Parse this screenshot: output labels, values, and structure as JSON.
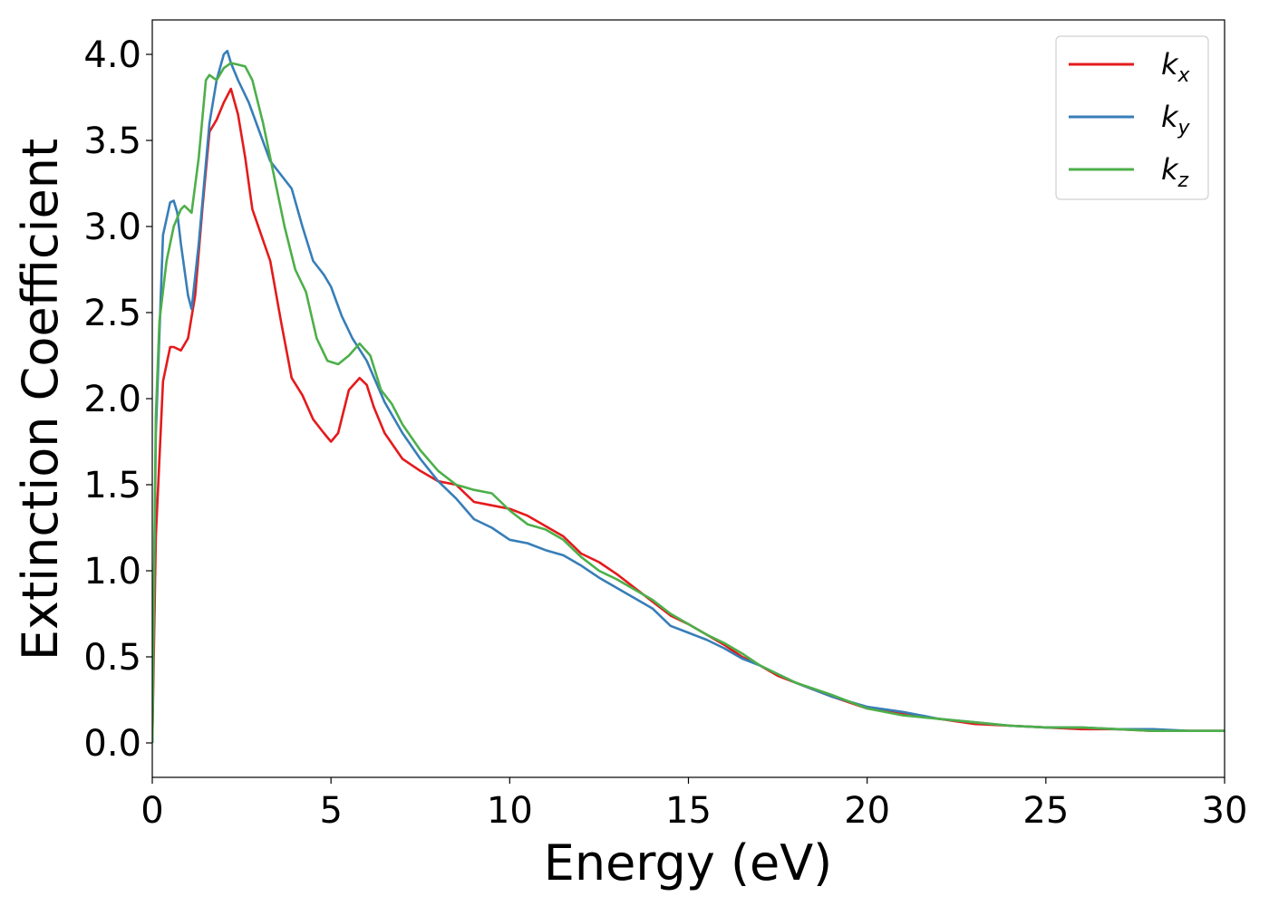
{
  "chart_data": {
    "type": "line",
    "title": "",
    "xlabel": "Energy (eV)",
    "ylabel": "Extinction Coefficient",
    "xlim": [
      0,
      30
    ],
    "ylim": [
      -0.2,
      4.2
    ],
    "xticks": [
      0,
      5,
      10,
      15,
      20,
      25,
      30
    ],
    "xtick_labels": [
      "0",
      "5",
      "10",
      "15",
      "20",
      "25",
      "30"
    ],
    "yticks": [
      0.0,
      0.5,
      1.0,
      1.5,
      2.0,
      2.5,
      3.0,
      3.5,
      4.0
    ],
    "ytick_labels": [
      "0.0",
      "0.5",
      "1.0",
      "1.5",
      "2.0",
      "2.5",
      "3.0",
      "3.5",
      "4.0"
    ],
    "grid": false,
    "legend_position": "top-right",
    "series": [
      {
        "name": "k_x",
        "legend_base": "k",
        "legend_sub": "x",
        "color": "#e41a1c",
        "x": [
          0,
          0.1,
          0.3,
          0.5,
          0.6,
          0.8,
          1.0,
          1.2,
          1.4,
          1.6,
          1.8,
          2.0,
          2.2,
          2.4,
          2.6,
          2.8,
          3.0,
          3.3,
          3.6,
          3.9,
          4.2,
          4.5,
          4.8,
          5.0,
          5.2,
          5.5,
          5.8,
          6.0,
          6.2,
          6.5,
          7.0,
          7.5,
          8.0,
          8.5,
          9.0,
          9.5,
          10.0,
          10.5,
          11.0,
          11.5,
          12.0,
          12.5,
          13.0,
          13.5,
          14.0,
          14.5,
          15.0,
          15.5,
          16.0,
          16.5,
          17.0,
          17.5,
          18.0,
          19.0,
          20.0,
          21.0,
          22.0,
          23.0,
          24.0,
          25.0,
          26.0,
          27.0,
          28.0,
          29.0,
          30.0
        ],
        "y": [
          0.0,
          1.2,
          2.1,
          2.3,
          2.3,
          2.28,
          2.35,
          2.6,
          3.1,
          3.55,
          3.62,
          3.72,
          3.8,
          3.65,
          3.4,
          3.1,
          2.98,
          2.8,
          2.45,
          2.12,
          2.02,
          1.88,
          1.8,
          1.75,
          1.8,
          2.05,
          2.12,
          2.08,
          1.95,
          1.8,
          1.65,
          1.58,
          1.52,
          1.5,
          1.4,
          1.38,
          1.36,
          1.32,
          1.26,
          1.2,
          1.1,
          1.05,
          0.98,
          0.9,
          0.82,
          0.74,
          0.69,
          0.63,
          0.57,
          0.5,
          0.45,
          0.39,
          0.35,
          0.27,
          0.2,
          0.17,
          0.14,
          0.11,
          0.1,
          0.09,
          0.08,
          0.08,
          0.07,
          0.07,
          0.07
        ]
      },
      {
        "name": "k_y",
        "legend_base": "k",
        "legend_sub": "y",
        "color": "#377eb8",
        "x": [
          0,
          0.1,
          0.3,
          0.5,
          0.6,
          0.7,
          0.8,
          1.0,
          1.1,
          1.3,
          1.6,
          1.8,
          2.0,
          2.1,
          2.2,
          2.4,
          2.7,
          3.0,
          3.3,
          3.6,
          3.9,
          4.2,
          4.5,
          4.8,
          5.0,
          5.3,
          5.6,
          6.0,
          6.5,
          7.0,
          7.5,
          8.0,
          8.5,
          9.0,
          9.5,
          10.0,
          10.5,
          11.0,
          11.5,
          12.0,
          12.5,
          13.0,
          13.5,
          14.0,
          14.5,
          15.0,
          15.5,
          16.0,
          16.5,
          17.0,
          17.5,
          18.0,
          19.0,
          20.0,
          21.0,
          22.0,
          23.0,
          24.0,
          25.0,
          26.0,
          27.0,
          28.0,
          29.0,
          30.0
        ],
        "y": [
          0.0,
          1.8,
          2.95,
          3.14,
          3.15,
          3.08,
          2.9,
          2.6,
          2.52,
          2.9,
          3.6,
          3.85,
          4.0,
          4.02,
          3.95,
          3.85,
          3.72,
          3.55,
          3.38,
          3.3,
          3.22,
          3.0,
          2.8,
          2.72,
          2.65,
          2.48,
          2.35,
          2.22,
          1.98,
          1.8,
          1.65,
          1.52,
          1.42,
          1.3,
          1.25,
          1.18,
          1.16,
          1.12,
          1.09,
          1.03,
          0.96,
          0.9,
          0.84,
          0.78,
          0.68,
          0.64,
          0.6,
          0.55,
          0.49,
          0.45,
          0.4,
          0.35,
          0.27,
          0.21,
          0.18,
          0.14,
          0.12,
          0.1,
          0.09,
          0.09,
          0.08,
          0.08,
          0.07,
          0.07
        ]
      },
      {
        "name": "k_z",
        "legend_base": "k",
        "legend_sub": "z",
        "color": "#4daf4a",
        "x": [
          0,
          0.1,
          0.2,
          0.4,
          0.6,
          0.8,
          0.9,
          1.1,
          1.3,
          1.5,
          1.6,
          1.8,
          2.0,
          2.2,
          2.4,
          2.6,
          2.8,
          3.1,
          3.4,
          3.7,
          4.0,
          4.3,
          4.6,
          4.9,
          5.2,
          5.5,
          5.8,
          6.1,
          6.4,
          6.7,
          7.0,
          7.5,
          8.0,
          8.5,
          9.0,
          9.5,
          10.0,
          10.5,
          11.0,
          11.5,
          12.0,
          12.5,
          13.0,
          13.5,
          14.0,
          14.5,
          15.0,
          15.5,
          16.0,
          16.5,
          17.0,
          17.5,
          18.0,
          19.0,
          20.0,
          21.0,
          22.0,
          23.0,
          24.0,
          25.0,
          26.0,
          27.0,
          28.0,
          29.0,
          30.0
        ],
        "y": [
          0.0,
          1.9,
          2.45,
          2.8,
          3.0,
          3.1,
          3.12,
          3.08,
          3.4,
          3.85,
          3.88,
          3.85,
          3.92,
          3.95,
          3.94,
          3.93,
          3.85,
          3.6,
          3.3,
          3.0,
          2.75,
          2.62,
          2.35,
          2.22,
          2.2,
          2.25,
          2.32,
          2.25,
          2.05,
          1.97,
          1.85,
          1.7,
          1.58,
          1.5,
          1.47,
          1.45,
          1.35,
          1.27,
          1.24,
          1.18,
          1.08,
          1.0,
          0.95,
          0.89,
          0.83,
          0.75,
          0.69,
          0.63,
          0.58,
          0.52,
          0.45,
          0.4,
          0.35,
          0.28,
          0.2,
          0.16,
          0.14,
          0.12,
          0.1,
          0.09,
          0.09,
          0.08,
          0.07,
          0.07,
          0.07
        ]
      }
    ]
  }
}
